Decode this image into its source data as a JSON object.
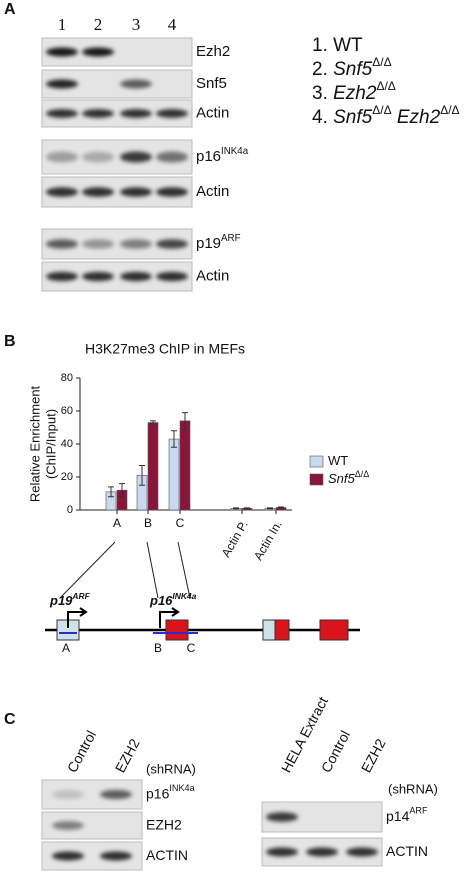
{
  "panel_a": {
    "label": "A",
    "lanes": [
      "1",
      "2",
      "3",
      "4"
    ],
    "blots": [
      {
        "text": "Ezh2"
      },
      {
        "text": "Snf5"
      },
      {
        "text": "Actin"
      },
      {
        "text": "p16",
        "sup": "INK4a"
      },
      {
        "text": "Actin"
      },
      {
        "text": "p19",
        "sup": "ARF"
      },
      {
        "text": "Actin"
      }
    ],
    "genotypes": [
      [
        {
          "text": "1. WT"
        }
      ],
      [
        {
          "text": "2. "
        },
        {
          "text": "Snf5",
          "style": "italic"
        },
        {
          "text": "Δ/Δ",
          "style": "sup"
        }
      ],
      [
        {
          "text": "3. "
        },
        {
          "text": "Ezh2",
          "style": "italic"
        },
        {
          "text": "Δ/Δ",
          "style": "sup"
        }
      ],
      [
        {
          "text": "4. "
        },
        {
          "text": "Snf5",
          "style": "italic"
        },
        {
          "text": "Δ/Δ",
          "style": "sup"
        },
        {
          "text": " Ezh2",
          "style": "italic"
        },
        {
          "text": "Δ/Δ",
          "style": "sup"
        }
      ]
    ]
  },
  "panel_b_label": "B",
  "chart_data": {
    "type": "bar",
    "title": "H3K27me3 ChIP in MEFs",
    "y_label": [
      "Relative Enrichment",
      "(ChIP/Input)"
    ],
    "categories": [
      "A",
      "B",
      "C",
      "Actin P.",
      "Actin In."
    ],
    "series": [
      {
        "name": "WT",
        "color": "#c8d9f0",
        "values": [
          11,
          21,
          43,
          1,
          1
        ],
        "errors": [
          3,
          6,
          5,
          0.3,
          0.3
        ]
      },
      {
        "name": "Snf5",
        "name_sup": "Δ/Δ",
        "color": "#8a1538",
        "values": [
          12,
          53,
          54,
          1,
          1.5
        ],
        "errors": [
          4,
          1,
          5,
          0.3,
          0.3
        ]
      }
    ],
    "ylim": [
      0,
      80
    ],
    "yticks": [
      0,
      20,
      40,
      60,
      80
    ]
  },
  "diagram": {
    "promoters": [
      {
        "text": "p19",
        "sup": "ARF"
      },
      {
        "text": "p16",
        "sup": "INK4a"
      }
    ],
    "regions": [
      "A",
      "B",
      "C"
    ]
  },
  "panel_c": {
    "label": "C",
    "left": {
      "lanes": [
        "Control",
        "EZH2"
      ],
      "note": "(shRNA)",
      "blots": [
        {
          "text": "p16",
          "sup": "INK4a"
        },
        {
          "text": "EZH2"
        },
        {
          "text": "ACTIN"
        }
      ]
    },
    "right": {
      "lanes": [
        "HELA Extract",
        "Control",
        "EZH2"
      ],
      "note": "(shRNA)",
      "blots": [
        {
          "text": "p14",
          "sup": "ARF"
        },
        {
          "text": "ACTIN"
        }
      ]
    }
  }
}
